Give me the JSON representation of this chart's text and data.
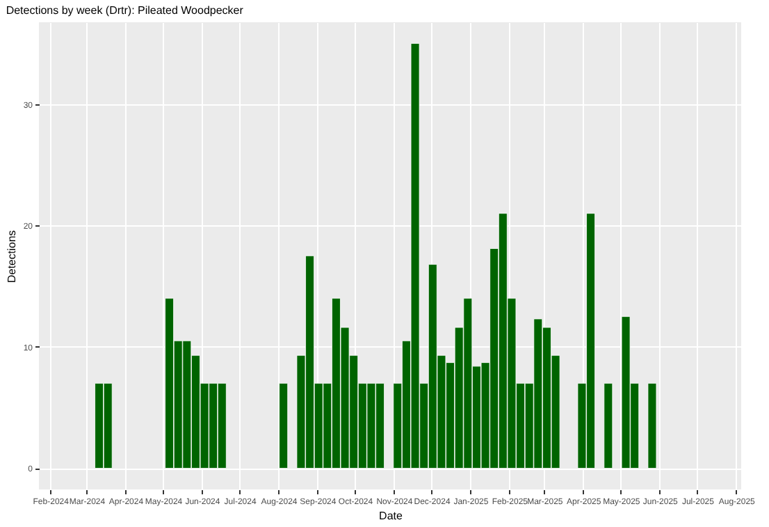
{
  "chart_data": {
    "type": "bar",
    "title": "Detections by week (Drtr): Pileated Woodpecker",
    "xlabel": "Date",
    "ylabel": "Detections",
    "x": [
      "2024-03-11",
      "2024-03-18",
      "2024-05-06",
      "2024-05-13",
      "2024-05-20",
      "2024-05-27",
      "2024-06-03",
      "2024-06-10",
      "2024-06-17",
      "2024-08-05",
      "2024-08-19",
      "2024-08-26",
      "2024-09-02",
      "2024-09-09",
      "2024-09-16",
      "2024-09-23",
      "2024-09-30",
      "2024-10-07",
      "2024-10-14",
      "2024-10-21",
      "2024-11-04",
      "2024-11-11",
      "2024-11-18",
      "2024-11-25",
      "2024-12-02",
      "2024-12-09",
      "2024-12-16",
      "2024-12-23",
      "2024-12-30",
      "2025-01-06",
      "2025-01-13",
      "2025-01-20",
      "2025-01-27",
      "2025-02-03",
      "2025-02-10",
      "2025-02-17",
      "2025-02-24",
      "2025-03-03",
      "2025-03-10",
      "2025-03-31",
      "2025-04-07",
      "2025-04-21",
      "2025-05-05",
      "2025-05-12",
      "2025-05-26"
    ],
    "values": [
      7,
      7,
      14,
      10.5,
      10.5,
      9.3,
      7,
      7,
      7,
      7,
      9.3,
      17.5,
      7,
      7,
      14,
      11.6,
      9.3,
      7,
      7,
      7,
      7,
      10.5,
      35,
      7,
      16.8,
      9.3,
      8.7,
      11.6,
      14,
      8.4,
      8.7,
      18.1,
      21,
      14,
      7,
      7,
      12.3,
      11.6,
      9.3,
      7,
      21,
      7,
      12.5,
      7,
      7
    ],
    "color": "#006400",
    "xlim": [
      "2024-01-23",
      "2025-08-05"
    ],
    "xticks": [
      {
        "value": "2024-02-01",
        "label": "Feb-2024"
      },
      {
        "value": "2024-03-01",
        "label": "Mar-2024"
      },
      {
        "value": "2024-04-01",
        "label": "Apr-2024"
      },
      {
        "value": "2024-05-01",
        "label": "May-2024"
      },
      {
        "value": "2024-06-01",
        "label": "Jun-2024"
      },
      {
        "value": "2024-07-01",
        "label": "Jul-2024"
      },
      {
        "value": "2024-08-01",
        "label": "Aug-2024"
      },
      {
        "value": "2024-09-01",
        "label": "Sep-2024"
      },
      {
        "value": "2024-10-01",
        "label": "Oct-2024"
      },
      {
        "value": "2024-11-01",
        "label": "Nov-2024"
      },
      {
        "value": "2024-12-01",
        "label": "Dec-2024"
      },
      {
        "value": "2025-01-01",
        "label": "Jan-2025"
      },
      {
        "value": "2025-02-01",
        "label": "Feb-2025"
      },
      {
        "value": "2025-03-01",
        "label": "Mar-2025"
      },
      {
        "value": "2025-04-01",
        "label": "Apr-2025"
      },
      {
        "value": "2025-05-01",
        "label": "May-2025"
      },
      {
        "value": "2025-06-01",
        "label": "Jun-2025"
      },
      {
        "value": "2025-07-01",
        "label": "Jul-2025"
      },
      {
        "value": "2025-08-01",
        "label": "Aug-2025"
      }
    ],
    "ylim": [
      -1.75,
      36.75
    ],
    "yticks": [
      0,
      10,
      20,
      30
    ],
    "grid": true
  }
}
